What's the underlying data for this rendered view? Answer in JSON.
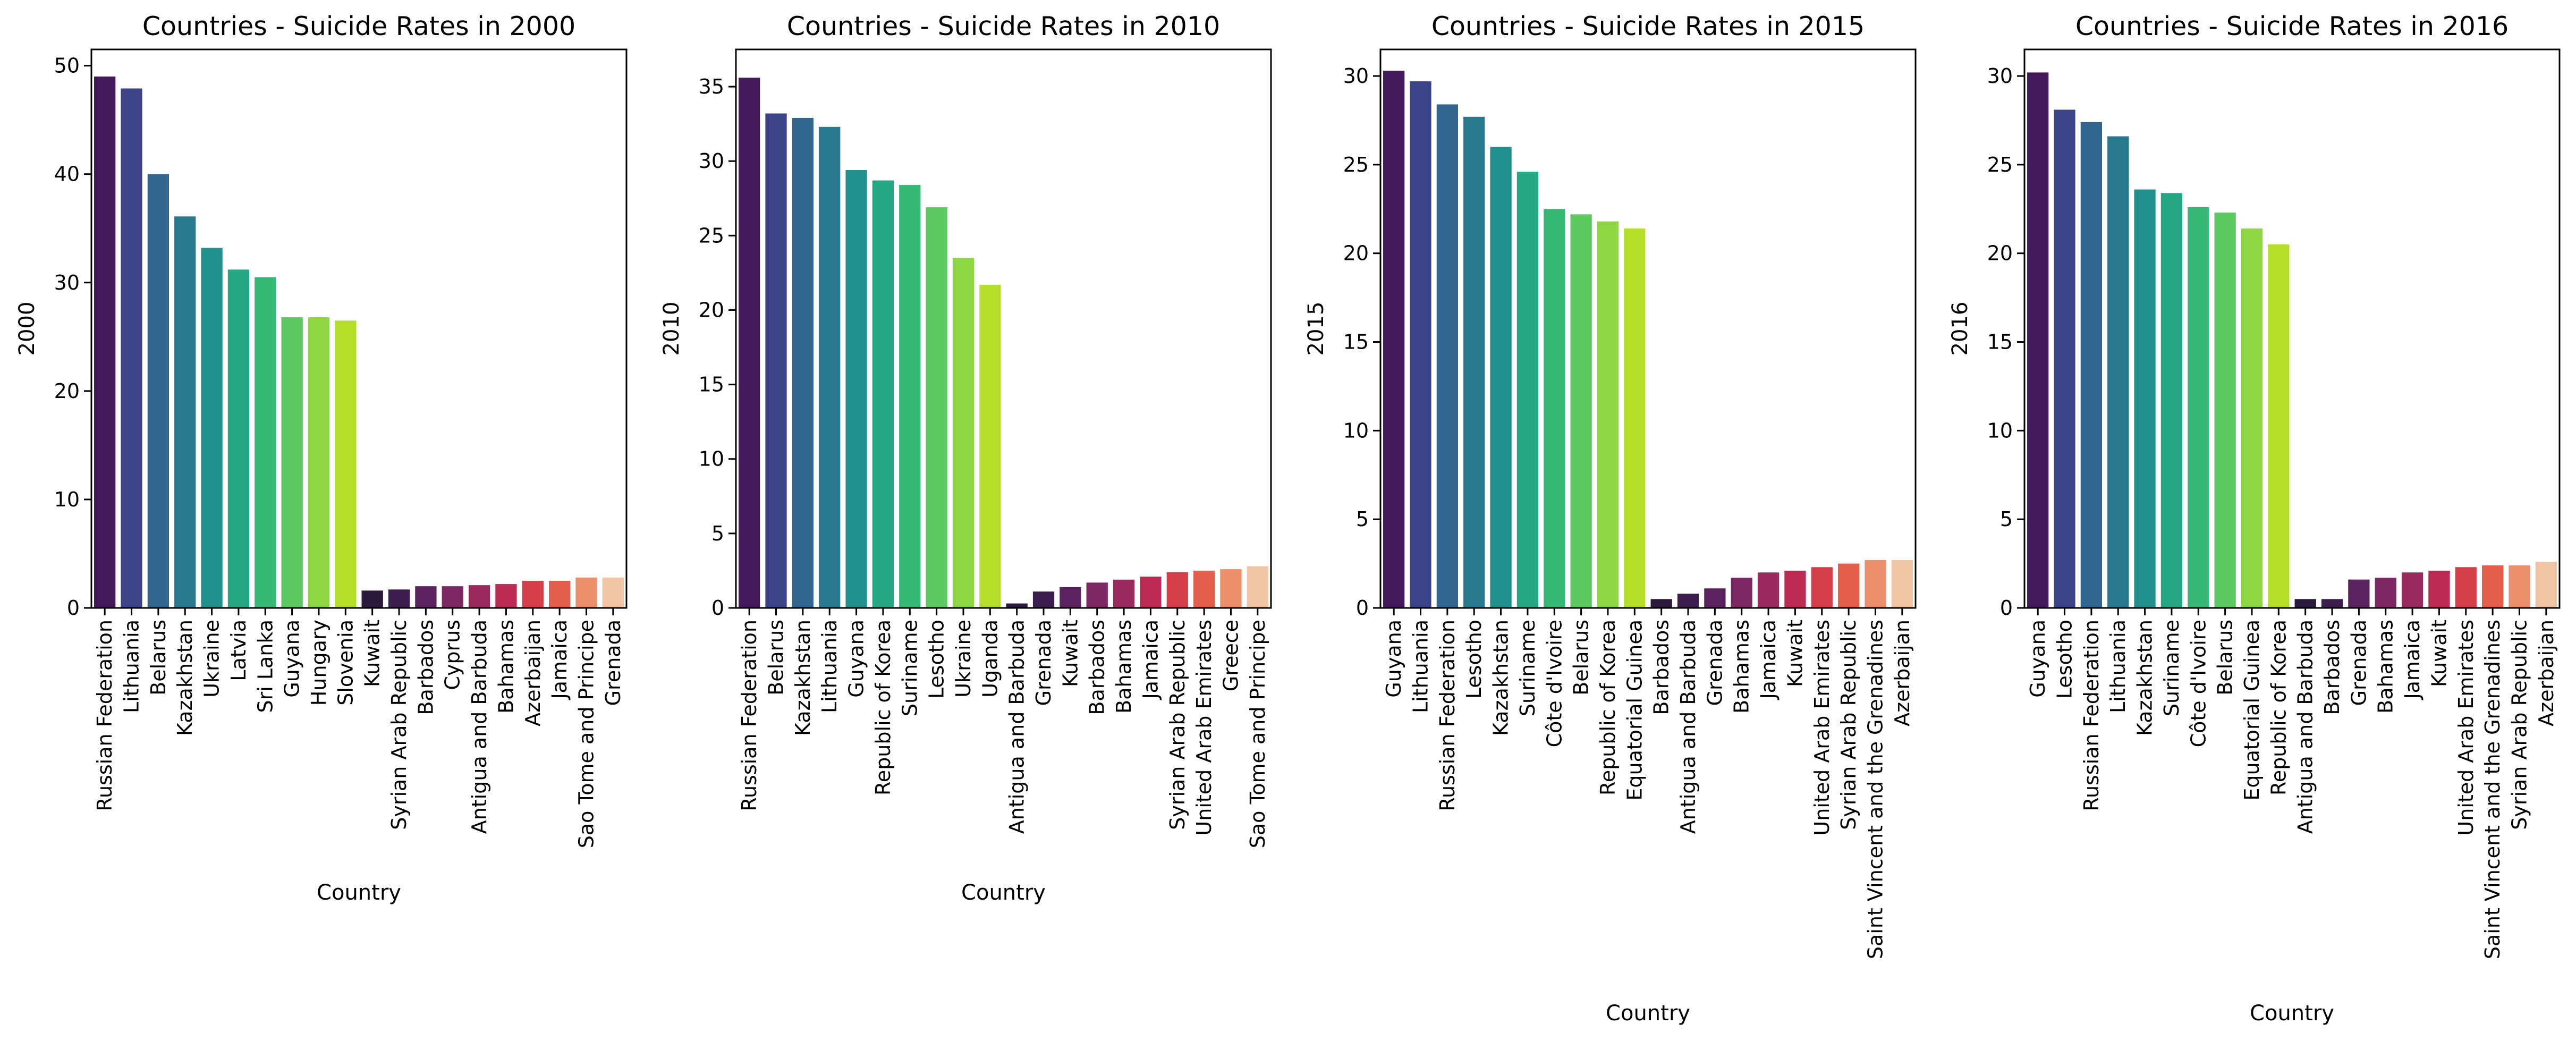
{
  "chart_data": [
    {
      "type": "bar",
      "title": "Countries - Suicide Rates in 2000",
      "xlabel": "Country",
      "ylabel": "2000",
      "ylim": [
        0,
        51.5
      ],
      "yticks": [
        0,
        10,
        20,
        30,
        40,
        50
      ],
      "grid": false,
      "categories": [
        "Russian Federation",
        "Lithuania",
        "Belarus",
        "Kazakhstan",
        "Ukraine",
        "Latvia",
        "Sri Lanka",
        "Guyana",
        "Hungary",
        "Slovenia",
        "Kuwait",
        "Syrian Arab Republic",
        "Barbados",
        "Cyprus",
        "Antigua and Barbuda",
        "Bahamas",
        "Azerbaijan",
        "Jamaica",
        "Sao Tome and Principe",
        "Grenada"
      ],
      "values": [
        49.0,
        47.9,
        40.0,
        36.1,
        33.2,
        31.2,
        30.5,
        26.8,
        26.8,
        26.5,
        1.6,
        1.7,
        2.0,
        2.0,
        2.1,
        2.2,
        2.5,
        2.5,
        2.8,
        2.8
      ],
      "colors": [
        "#44195a",
        "#3c4487",
        "#31658e",
        "#29798e",
        "#22908c",
        "#26a784",
        "#36b877",
        "#5ec962",
        "#8fd644",
        "#b5de2b",
        "#2b1a3c",
        "#3b1e4e",
        "#5a2360",
        "#7c2761",
        "#9a2a5d",
        "#bc2b53",
        "#d53f49",
        "#e45e4c",
        "#eb8f6c",
        "#f0c5a6"
      ]
    },
    {
      "type": "bar",
      "title": "Countries - Suicide Rates in 2010",
      "xlabel": "Country",
      "ylabel": "2010",
      "ylim": [
        0,
        37.5
      ],
      "yticks": [
        0,
        5,
        10,
        15,
        20,
        25,
        30,
        35
      ],
      "grid": false,
      "categories": [
        "Russian Federation",
        "Belarus",
        "Kazakhstan",
        "Lithuania",
        "Guyana",
        "Republic of Korea",
        "Suriname",
        "Lesotho",
        "Ukraine",
        "Uganda",
        "Antigua and Barbuda",
        "Grenada",
        "Kuwait",
        "Barbados",
        "Bahamas",
        "Jamaica",
        "Syrian Arab Republic",
        "United Arab Emirates",
        "Greece",
        "Sao Tome and Principe"
      ],
      "values": [
        35.6,
        33.2,
        32.9,
        32.3,
        29.4,
        28.7,
        28.4,
        26.9,
        23.5,
        21.7,
        0.3,
        1.1,
        1.4,
        1.7,
        1.9,
        2.1,
        2.4,
        2.5,
        2.6,
        2.8
      ],
      "colors": [
        "#44195a",
        "#3c4487",
        "#31658e",
        "#29798e",
        "#22908c",
        "#26a784",
        "#36b877",
        "#5ec962",
        "#8fd644",
        "#b5de2b",
        "#2b1a3c",
        "#3b1e4e",
        "#5a2360",
        "#7c2761",
        "#9a2a5d",
        "#bc2b53",
        "#d53f49",
        "#e45e4c",
        "#eb8f6c",
        "#f0c5a6"
      ]
    },
    {
      "type": "bar",
      "title": "Countries - Suicide Rates in 2015",
      "xlabel": "Country",
      "ylabel": "2015",
      "ylim": [
        0,
        31.5
      ],
      "yticks": [
        0,
        5,
        10,
        15,
        20,
        25,
        30
      ],
      "grid": false,
      "categories": [
        "Guyana",
        "Lithuania",
        "Russian Federation",
        "Lesotho",
        "Kazakhstan",
        "Suriname",
        "Côte d'Ivoire",
        "Belarus",
        "Republic of Korea",
        "Equatorial Guinea",
        "Barbados",
        "Antigua and Barbuda",
        "Grenada",
        "Bahamas",
        "Jamaica",
        "Kuwait",
        "United Arab Emirates",
        "Syrian Arab Republic",
        "Saint Vincent and the Grenadines",
        "Azerbaijan"
      ],
      "values": [
        30.3,
        29.7,
        28.4,
        27.7,
        26.0,
        24.6,
        22.5,
        22.2,
        21.8,
        21.4,
        0.5,
        0.8,
        1.1,
        1.7,
        2.0,
        2.1,
        2.3,
        2.5,
        2.7,
        2.7
      ],
      "colors": [
        "#44195a",
        "#3c4487",
        "#31658e",
        "#29798e",
        "#22908c",
        "#26a784",
        "#36b877",
        "#5ec962",
        "#8fd644",
        "#b5de2b",
        "#2b1a3c",
        "#3b1e4e",
        "#5a2360",
        "#7c2761",
        "#9a2a5d",
        "#bc2b53",
        "#d53f49",
        "#e45e4c",
        "#eb8f6c",
        "#f0c5a6"
      ]
    },
    {
      "type": "bar",
      "title": "Countries - Suicide Rates in 2016",
      "xlabel": "Country",
      "ylabel": "2016",
      "ylim": [
        0,
        31.5
      ],
      "yticks": [
        0,
        5,
        10,
        15,
        20,
        25,
        30
      ],
      "grid": false,
      "categories": [
        "Guyana",
        "Lesotho",
        "Russian Federation",
        "Lithuania",
        "Kazakhstan",
        "Suriname",
        "Côte d'Ivoire",
        "Belarus",
        "Equatorial Guinea",
        "Republic of Korea",
        "Antigua and Barbuda",
        "Barbados",
        "Grenada",
        "Bahamas",
        "Jamaica",
        "Kuwait",
        "United Arab Emirates",
        "Saint Vincent and the Grenadines",
        "Syrian Arab Republic",
        "Azerbaijan"
      ],
      "values": [
        30.2,
        28.1,
        27.4,
        26.6,
        23.6,
        23.4,
        22.6,
        22.3,
        21.4,
        20.5,
        0.5,
        0.5,
        1.6,
        1.7,
        2.0,
        2.1,
        2.3,
        2.4,
        2.4,
        2.6
      ],
      "colors": [
        "#44195a",
        "#3c4487",
        "#31658e",
        "#29798e",
        "#22908c",
        "#26a784",
        "#36b877",
        "#5ec962",
        "#8fd644",
        "#b5de2b",
        "#2b1a3c",
        "#3b1e4e",
        "#5a2360",
        "#7c2761",
        "#9a2a5d",
        "#bc2b53",
        "#d53f49",
        "#e45e4c",
        "#eb8f6c",
        "#f0c5a6"
      ]
    }
  ]
}
